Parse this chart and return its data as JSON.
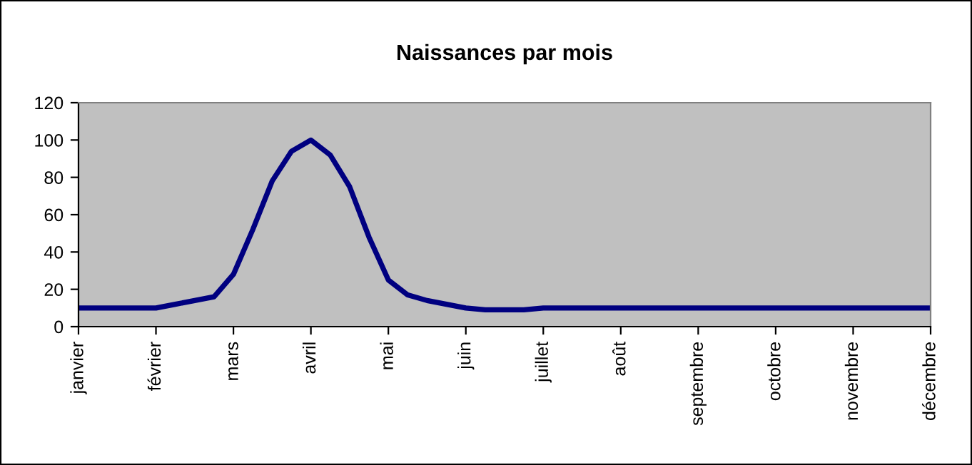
{
  "chart_data": {
    "type": "line",
    "title": "Naissances par mois",
    "categories": [
      "janvier",
      null,
      null,
      null,
      "février",
      null,
      null,
      null,
      "mars",
      null,
      null,
      null,
      "avril",
      null,
      null,
      null,
      "mai",
      null,
      null,
      null,
      "juin",
      null,
      null,
      null,
      "juillet",
      null,
      null,
      null,
      "août",
      null,
      null,
      null,
      "septembre",
      null,
      null,
      null,
      "octobre",
      null,
      null,
      null,
      "novembre",
      null,
      null,
      null,
      "décembre"
    ],
    "series": [
      {
        "color": "#000080",
        "values": [
          10,
          10,
          10,
          10,
          10,
          12,
          14,
          16,
          28,
          52,
          78,
          94,
          100,
          92,
          75,
          48,
          25,
          17,
          14,
          12,
          10,
          9,
          9,
          9,
          10,
          10,
          10,
          10,
          10,
          10,
          10,
          10,
          10,
          10,
          10,
          10,
          10,
          10,
          10,
          10,
          10,
          10,
          10,
          10,
          10
        ]
      }
    ],
    "ylim": [
      0,
      120
    ],
    "yticks": [
      0,
      20,
      40,
      60,
      80,
      100,
      120
    ],
    "grid": false,
    "legend": false,
    "marker": "none",
    "line_style": "solid"
  }
}
